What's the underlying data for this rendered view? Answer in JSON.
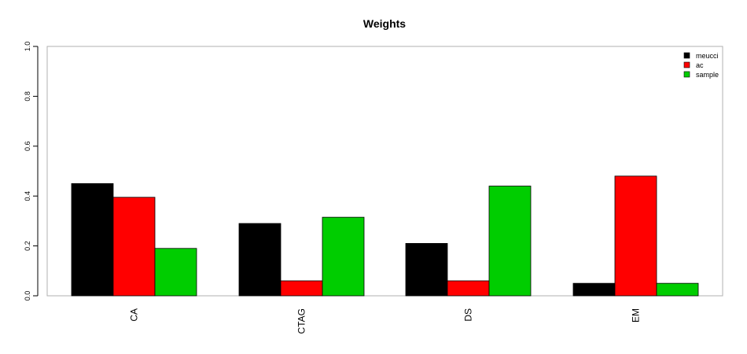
{
  "chart_data": {
    "type": "bar",
    "title": "Weights",
    "xlabel": "",
    "ylabel": "",
    "ylim": [
      0,
      1
    ],
    "yticks": [
      "0.0",
      "0.2",
      "0.4",
      "0.6",
      "0.8",
      "1.0"
    ],
    "categories": [
      "CA",
      "CTAG",
      "DS",
      "EM"
    ],
    "series": [
      {
        "name": "meucci",
        "color": "#000000",
        "values": [
          0.45,
          0.29,
          0.21,
          0.05
        ]
      },
      {
        "name": "ac",
        "color": "#ff0000",
        "values": [
          0.395,
          0.06,
          0.06,
          0.48
        ]
      },
      {
        "name": "sample",
        "color": "#00cd00",
        "values": [
          0.19,
          0.315,
          0.44,
          0.05
        ]
      }
    ],
    "legend_position": "top-right",
    "grid": false
  }
}
